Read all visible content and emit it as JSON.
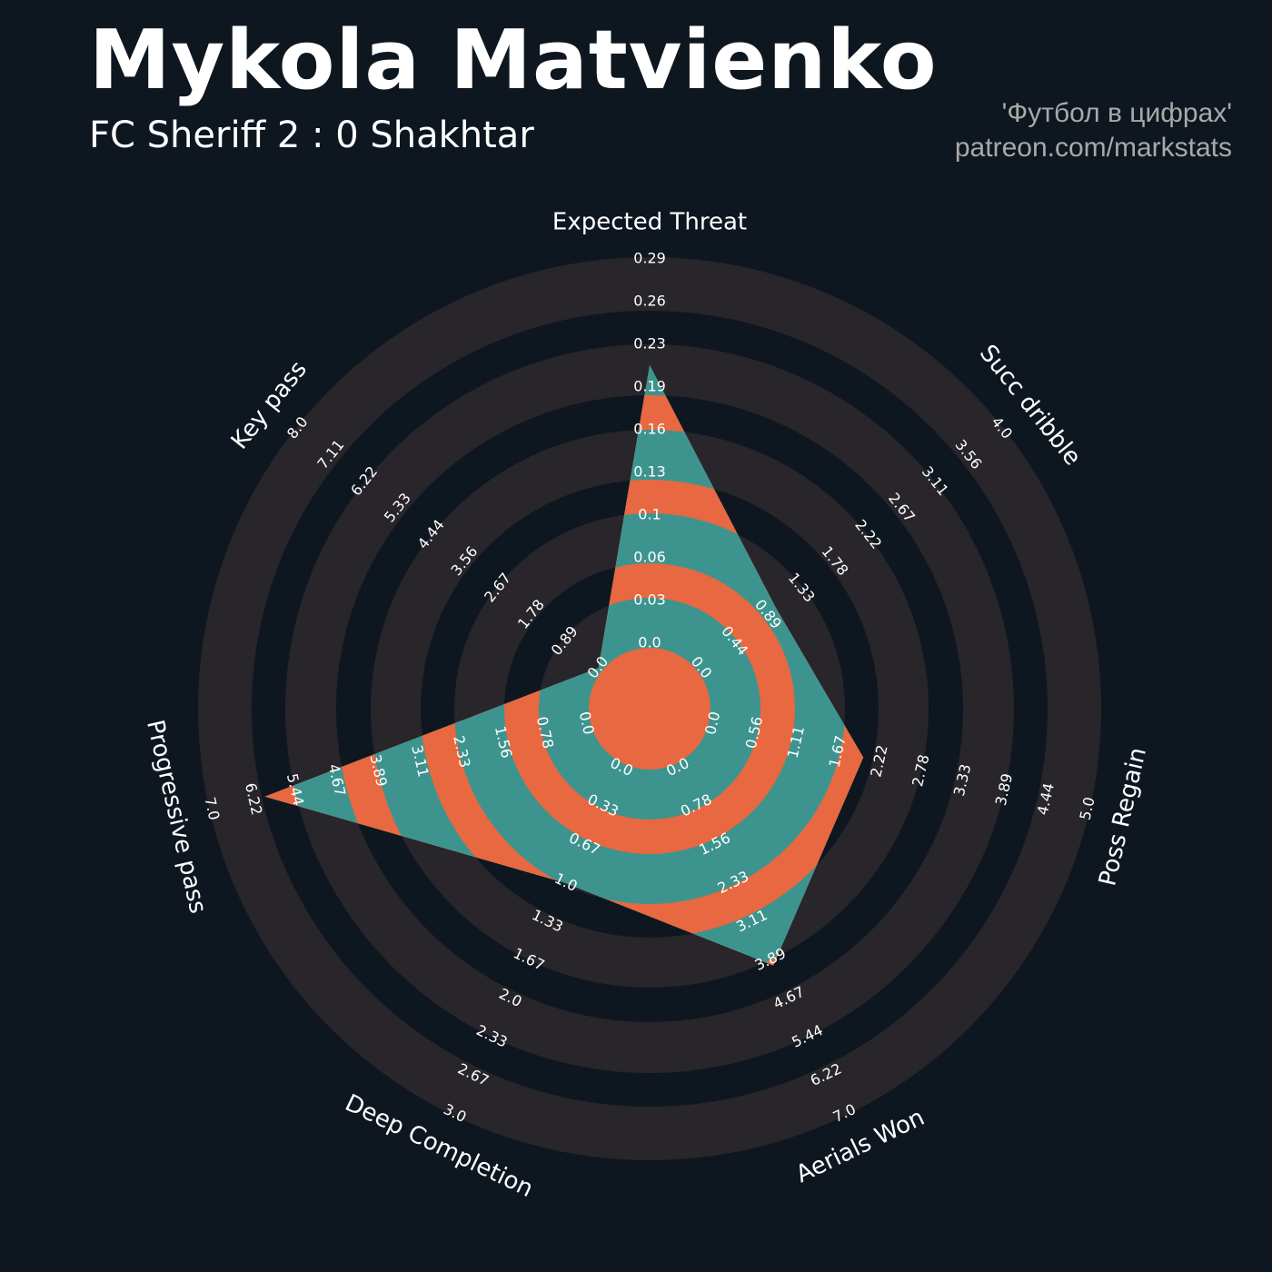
{
  "header": {
    "title": "Mykola Matvienko",
    "subtitle": "FC Sheriff 2 : 0 Shakhtar",
    "credit_line1": "'Футбол в цифрах'",
    "credit_line2": "patreon.com/markstats"
  },
  "colors": {
    "background": "#0e1720",
    "ring": "#28252b",
    "player_fill_light": "#3d948f",
    "player_fill_dark": "#e76841",
    "text": "#ffffff",
    "credit_text": "#a9a9a9"
  },
  "chart_data": {
    "type": "radar",
    "params": [
      "Expected Threat",
      "Succ dribble",
      "Poss Regain",
      "Aerials Won",
      "Deep Completion",
      "Progressive pass",
      "Key pass"
    ],
    "ranges": [
      [
        0.0,
        0.29
      ],
      [
        0.0,
        4.0
      ],
      [
        0.0,
        5.0
      ],
      [
        0.0,
        7.0
      ],
      [
        0.0,
        3.0
      ],
      [
        0.0,
        7.0
      ],
      [
        0.0,
        8.0
      ]
    ],
    "values": [
      0.21,
      1.0,
      2.0,
      4.0,
      1.0,
      6.0,
      0.0
    ],
    "tick_labels": [
      [
        "0.0",
        "0.03",
        "0.06",
        "0.1",
        "0.13",
        "0.16",
        "0.19",
        "0.23",
        "0.26",
        "0.29"
      ],
      [
        "0.0",
        "0.44",
        "0.89",
        "1.33",
        "1.78",
        "2.22",
        "2.67",
        "3.11",
        "3.56",
        "4.0"
      ],
      [
        "0.0",
        "0.56",
        "1.11",
        "1.67",
        "2.22",
        "2.78",
        "3.33",
        "3.89",
        "4.44",
        "5.0"
      ],
      [
        "0.0",
        "0.78",
        "1.56",
        "2.33",
        "3.11",
        "3.89",
        "4.67",
        "5.44",
        "6.22",
        "7.0"
      ],
      [
        "0.0",
        "0.33",
        "0.67",
        "1.0",
        "1.33",
        "1.67",
        "2.0",
        "2.33",
        "2.67",
        "3.0"
      ],
      [
        "0.0",
        "0.78",
        "1.56",
        "2.33",
        "3.11",
        "3.89",
        "4.67",
        "5.44",
        "6.22",
        "7.0"
      ],
      [
        "0.0",
        "0.89",
        "1.78",
        "2.67",
        "3.56",
        "4.44",
        "5.33",
        "6.22",
        "7.11",
        "8.0"
      ]
    ]
  }
}
